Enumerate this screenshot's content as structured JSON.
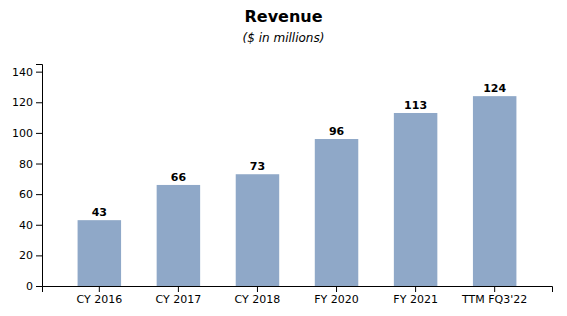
{
  "chart_data": {
    "type": "bar",
    "title": "Revenue",
    "subtitle": "($ in millions)",
    "categories": [
      "CY 2016",
      "CY 2017",
      "CY 2018",
      "FY 2020",
      "FY 2021",
      "TTM FQ3'22"
    ],
    "values": [
      43,
      66,
      73,
      96,
      113,
      124
    ],
    "color": "#8fa8c8",
    "ylim": [
      0,
      145
    ],
    "yticks": [
      0,
      20,
      40,
      60,
      80,
      100,
      120,
      140
    ],
    "grid": false,
    "data_labels": true
  }
}
